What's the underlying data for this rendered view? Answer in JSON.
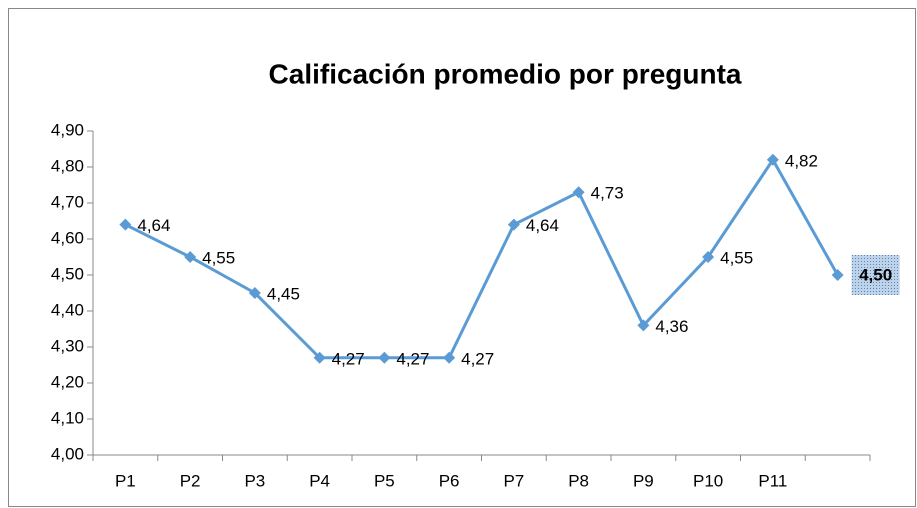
{
  "chart_data": {
    "type": "line",
    "title": "Calificación promedio por pregunta",
    "categories": [
      "P1",
      "P2",
      "P3",
      "P4",
      "P5",
      "P6",
      "P7",
      "P8",
      "P9",
      "P10",
      "P11",
      null
    ],
    "series": [
      {
        "color": "#5b9bd5",
        "values": [
          4.64,
          4.55,
          4.45,
          4.27,
          4.27,
          4.27,
          4.64,
          4.73,
          4.36,
          4.55,
          4.82,
          4.5
        ],
        "value_labels": [
          "4,64",
          "4,55",
          "4,45",
          "4,27",
          "4,27",
          "4,27",
          "4,64",
          "4,73",
          "4,36",
          "4,55",
          "4,82",
          "4,50"
        ]
      }
    ],
    "ylim": [
      4.0,
      4.9
    ],
    "yticks": [
      {
        "value": 4.0,
        "label": "4,00"
      },
      {
        "value": 4.1,
        "label": "4,10"
      },
      {
        "value": 4.2,
        "label": "4,20"
      },
      {
        "value": 4.3,
        "label": "4,30"
      },
      {
        "value": 4.4,
        "label": "4,40"
      },
      {
        "value": 4.5,
        "label": "4,50"
      },
      {
        "value": 4.6,
        "label": "4,60"
      },
      {
        "value": 4.7,
        "label": "4,70"
      },
      {
        "value": 4.8,
        "label": "4,80"
      },
      {
        "value": 4.9,
        "label": "4,90"
      }
    ],
    "grid": false
  }
}
